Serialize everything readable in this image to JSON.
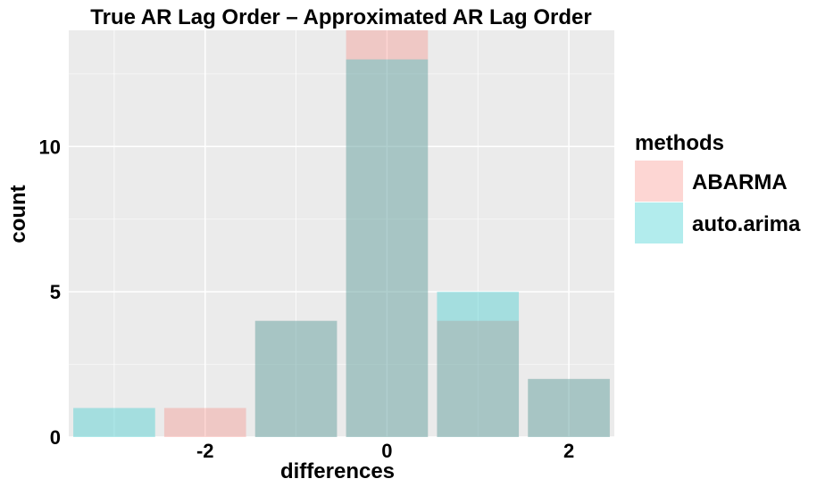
{
  "chart_data": {
    "type": "bar",
    "title": "True AR Lag Order – Approximated AR Lag Order",
    "xlabel": "differences",
    "ylabel": "count",
    "x_ticks": [
      -2,
      0,
      2
    ],
    "y_ticks": [
      0,
      5,
      10
    ],
    "xlim": [
      -3.5,
      2.5
    ],
    "ylim": [
      0,
      14
    ],
    "grid": true,
    "legend": {
      "title": "methods",
      "position": "right"
    },
    "x": [
      -3,
      -2,
      -1,
      0,
      1,
      2
    ],
    "series": [
      {
        "name": "ABARMA",
        "color": "#F8766D",
        "values": [
          0,
          1,
          4,
          14,
          4,
          2
        ]
      },
      {
        "name": "auto.arima",
        "color": "#00BFC4",
        "values": [
          1,
          0,
          4,
          13,
          5,
          2
        ]
      }
    ]
  },
  "style": {
    "panel_bg": "#EBEBEB",
    "grid_major": "#FFFFFF",
    "bar_alpha": 0.3
  }
}
